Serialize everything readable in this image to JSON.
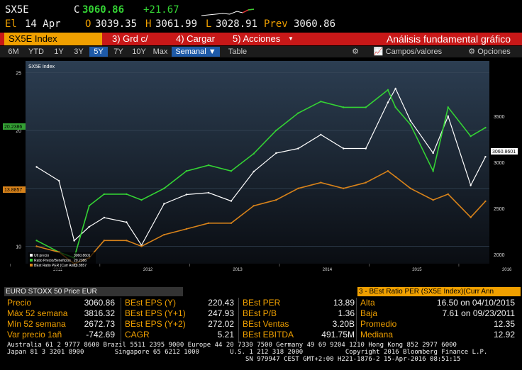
{
  "quote": {
    "ticker": "SX5E",
    "close_label": "C",
    "close": "3060.86",
    "change": "+21.67",
    "date_label": "El",
    "date": "14 Apr",
    "open_label": "O",
    "open": "3039.35",
    "high_label": "H",
    "high": "3061.99",
    "low_label": "L",
    "low": "3028.91",
    "prev_label": "Prev",
    "prev": "3060.86"
  },
  "function_bar": {
    "security": "SX5E Index",
    "btn3": "3) Grd c/",
    "btn4": "4) Cargar",
    "btn5": "5) Acciones",
    "btn5_arrow": "▼",
    "title": "Análisis fundamental gráfico"
  },
  "period_bar": {
    "periods": [
      "6M",
      "YTD",
      "1Y",
      "3Y",
      "5Y",
      "7Y",
      "10Y",
      "Max"
    ],
    "selected": "5Y",
    "frequency": "Semanal",
    "table": "Table",
    "fields": "Campos/valores",
    "options": "Opciones"
  },
  "chart_data": {
    "type": "line",
    "title": "SX5E Index",
    "x_ticks": [
      "2011",
      "2012",
      "2013",
      "2014",
      "2015",
      "2016"
    ],
    "left_axis": {
      "ticks": [
        10,
        15,
        20,
        25
      ],
      "range": [
        8.5,
        26
      ]
    },
    "right_axis": {
      "ticks": [
        2000,
        2500,
        3000,
        3500
      ],
      "range": [
        1900,
        4100
      ]
    },
    "legend_position": "bottom-left",
    "series": [
      {
        "name": "Ult precio",
        "last": "3060.8601",
        "axis": "right",
        "color": "#ffffff",
        "x": [
          "2011-04",
          "2011-07",
          "2011-09",
          "2011-11",
          "2012-01",
          "2012-04",
          "2012-06",
          "2012-09",
          "2012-12",
          "2013-03",
          "2013-06",
          "2013-09",
          "2013-12",
          "2014-03",
          "2014-06",
          "2014-09",
          "2014-12",
          "2015-03",
          "2015-04",
          "2015-06",
          "2015-09",
          "2015-11",
          "2016-02",
          "2016-04"
        ],
        "values": [
          2950,
          2800,
          2150,
          2300,
          2400,
          2350,
          2100,
          2550,
          2650,
          2670,
          2580,
          2900,
          3100,
          3150,
          3300,
          3150,
          3150,
          3650,
          3800,
          3450,
          3100,
          3500,
          2750,
          3060
        ]
      },
      {
        "name": "Ratio Precio/Beneficios",
        "last": "20.2386",
        "axis": "left",
        "color": "#34d334",
        "x": [
          "2011-04",
          "2011-07",
          "2011-09",
          "2011-11",
          "2012-01",
          "2012-04",
          "2012-06",
          "2012-09",
          "2012-12",
          "2013-03",
          "2013-06",
          "2013-09",
          "2013-12",
          "2014-03",
          "2014-06",
          "2014-09",
          "2014-12",
          "2015-03",
          "2015-04",
          "2015-06",
          "2015-09",
          "2015-11",
          "2016-02",
          "2016-04"
        ],
        "values": [
          10.5,
          9.5,
          9.0,
          13.5,
          14.5,
          14.5,
          14.0,
          15.0,
          16.5,
          17.0,
          16.5,
          18.0,
          20.0,
          21.5,
          22.5,
          22.0,
          22.0,
          23.5,
          22.0,
          20.5,
          16.5,
          22.0,
          19.5,
          20.24
        ]
      },
      {
        "name": "BEst Ratio PER (Curr Ann)",
        "last": "13.8857",
        "axis": "left",
        "color": "#d7821a",
        "x": [
          "2011-04",
          "2011-07",
          "2011-09",
          "2011-11",
          "2012-01",
          "2012-04",
          "2012-06",
          "2012-09",
          "2012-12",
          "2013-03",
          "2013-06",
          "2013-09",
          "2013-12",
          "2014-03",
          "2014-06",
          "2014-09",
          "2014-12",
          "2015-03",
          "2015-04",
          "2015-06",
          "2015-09",
          "2015-11",
          "2016-02",
          "2016-04"
        ],
        "values": [
          10.0,
          9.5,
          8.5,
          9.0,
          10.5,
          10.5,
          10.0,
          11.0,
          11.5,
          12.0,
          12.0,
          13.5,
          14.0,
          15.0,
          15.5,
          15.0,
          15.5,
          16.5,
          16.0,
          15.0,
          14.0,
          14.5,
          12.5,
          13.89
        ]
      }
    ]
  },
  "axis_labels": {
    "left_tag": "20.2386",
    "left_tag2": "13.8857",
    "right_tag": "3060.8601"
  },
  "stats": {
    "header_left": "EURO STOXX 50 Price EUR",
    "header_right": "3 - BEst Ratio PER (SX5E Index)(Curr Ann",
    "col1": [
      {
        "label": "Precio",
        "value": "3060.86"
      },
      {
        "label": "Máx 52 semana",
        "value": "3816.32"
      },
      {
        "label": "Mín 52 semana",
        "value": "2672.73"
      },
      {
        "label": "Var precio 1añ",
        "value": "-742.69"
      }
    ],
    "col2": [
      {
        "label": "BEst EPS (Y)",
        "value": "220.43"
      },
      {
        "label": "BEst EPS (Y+1)",
        "value": "247.93"
      },
      {
        "label": "BEst EPS (Y+2)",
        "value": "272.02"
      },
      {
        "label": "CAGR",
        "value": "5.21"
      }
    ],
    "col3": [
      {
        "label": "BEst PER",
        "value": "13.89"
      },
      {
        "label": "BEst P/B",
        "value": "1.36"
      },
      {
        "label": "BEst Ventas",
        "value": "3.20B"
      },
      {
        "label": "BEst EBITDA",
        "value": "491.75M"
      }
    ],
    "col4": [
      {
        "label": "Alta",
        "value": "16.50 on 04/10/2015"
      },
      {
        "label": "Baja",
        "value": "7.61 on 09/23/2011"
      },
      {
        "label": "Promedio",
        "value": "12.35"
      },
      {
        "label": "Mediana",
        "value": "12.92"
      }
    ]
  },
  "footer": {
    "line1": "Australia 61 2 9777 8600 Brazil 5511 2395 9000 Europe 44 20 7330 7500 Germany 49 69 9204 1210 Hong Kong 852 2977 6000",
    "line2": "Japan 81 3 3201 8900        Singapore 65 6212 1000        U.S. 1 212 318 2000           Copyright 2016 Bloomberg Finance L.P.",
    "line3": "                                                              SN 979947 CEST GMT+2:00 H221-1876-2 15-Apr-2016 08:51:15"
  }
}
